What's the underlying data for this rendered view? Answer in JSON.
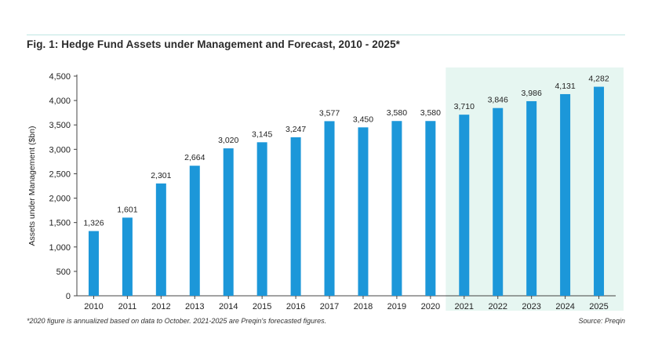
{
  "title": "Fig. 1: Hedge Fund Assets under Management and Forecast, 2010 - 2025*",
  "footnote": "*2020 figure is annualized based on data to October. 2021-2025 are Preqin's forecasted figures.",
  "source": "Source: Preqin",
  "colors": {
    "bar": "#1c97d9",
    "forecast_band": "#e6f6f1",
    "axis": "#444444",
    "rule": "#bfe6e2"
  },
  "chart_data": {
    "type": "bar",
    "title": "Fig. 1: Hedge Fund Assets under Management and Forecast, 2010 - 2025*",
    "xlabel": "",
    "ylabel": "Assets under Management ($bn)",
    "categories": [
      "2010",
      "2011",
      "2012",
      "2013",
      "2014",
      "2015",
      "2016",
      "2017",
      "2018",
      "2019",
      "2020",
      "2021",
      "2022",
      "2023",
      "2024",
      "2025"
    ],
    "values": [
      1326,
      1601,
      2301,
      2664,
      3020,
      3145,
      3247,
      3577,
      3450,
      3580,
      3580,
      3710,
      3846,
      3986,
      4131,
      4282
    ],
    "value_labels": [
      "1,326",
      "1,601",
      "2,301",
      "2,664",
      "3,020",
      "3,145",
      "3,247",
      "3,577",
      "3,450",
      "3,580",
      "3,580",
      "3,710",
      "3,846",
      "3,986",
      "4,131",
      "4,282"
    ],
    "ylim": [
      0,
      4500
    ],
    "yticks": [
      0,
      500,
      1000,
      1500,
      2000,
      2500,
      3000,
      3500,
      4000,
      4500
    ],
    "ytick_labels": [
      "0",
      "500",
      "1,000",
      "1,500",
      "2,000",
      "2,500",
      "3,000",
      "3,500",
      "4,000",
      "4,500"
    ],
    "forecast_categories": [
      "2021",
      "2022",
      "2023",
      "2024",
      "2025"
    ],
    "grid": false
  }
}
